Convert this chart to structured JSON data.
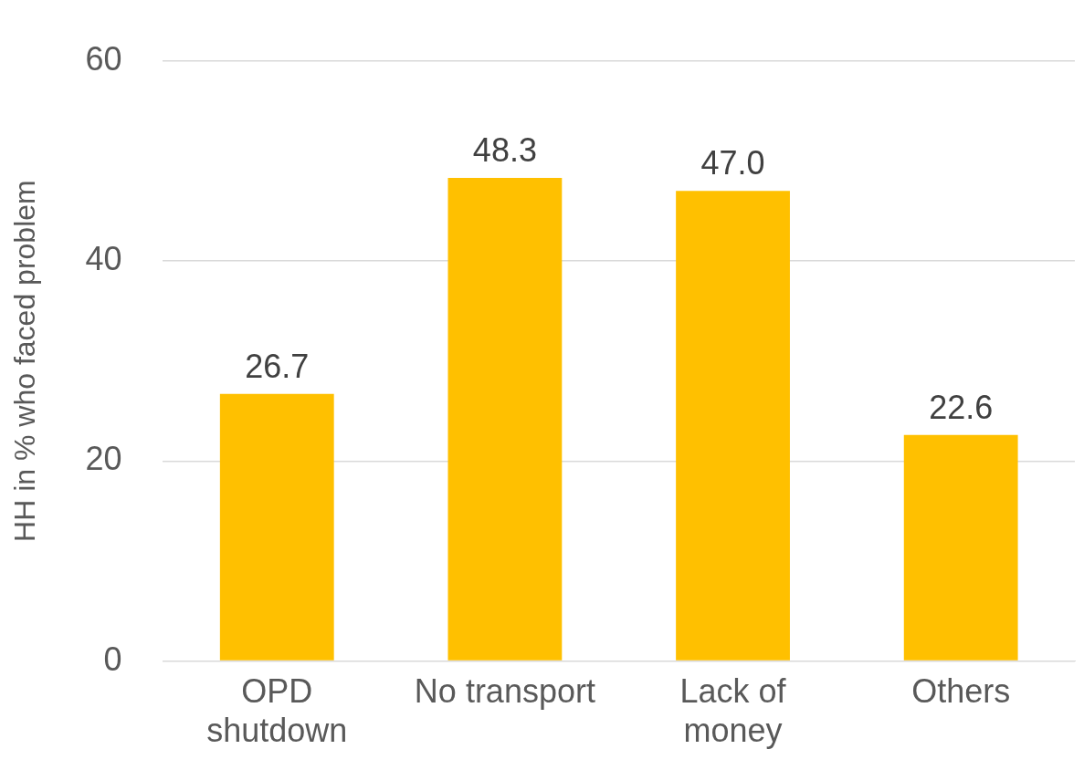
{
  "chart_data": {
    "type": "bar",
    "ylabel": "HH in % who faced problem",
    "categories": [
      "OPD shutdown",
      "No transport",
      "Lack of money",
      "Others"
    ],
    "values": [
      26.7,
      48.3,
      47.0,
      22.6
    ],
    "color": "#ffc000",
    "ylim": [
      0,
      60
    ],
    "yticks": [
      0,
      20,
      40,
      60
    ],
    "grid": "y",
    "data_labels": true,
    "value_labels": [
      "26.7",
      "48.3",
      "47.0",
      "22.6"
    ]
  }
}
